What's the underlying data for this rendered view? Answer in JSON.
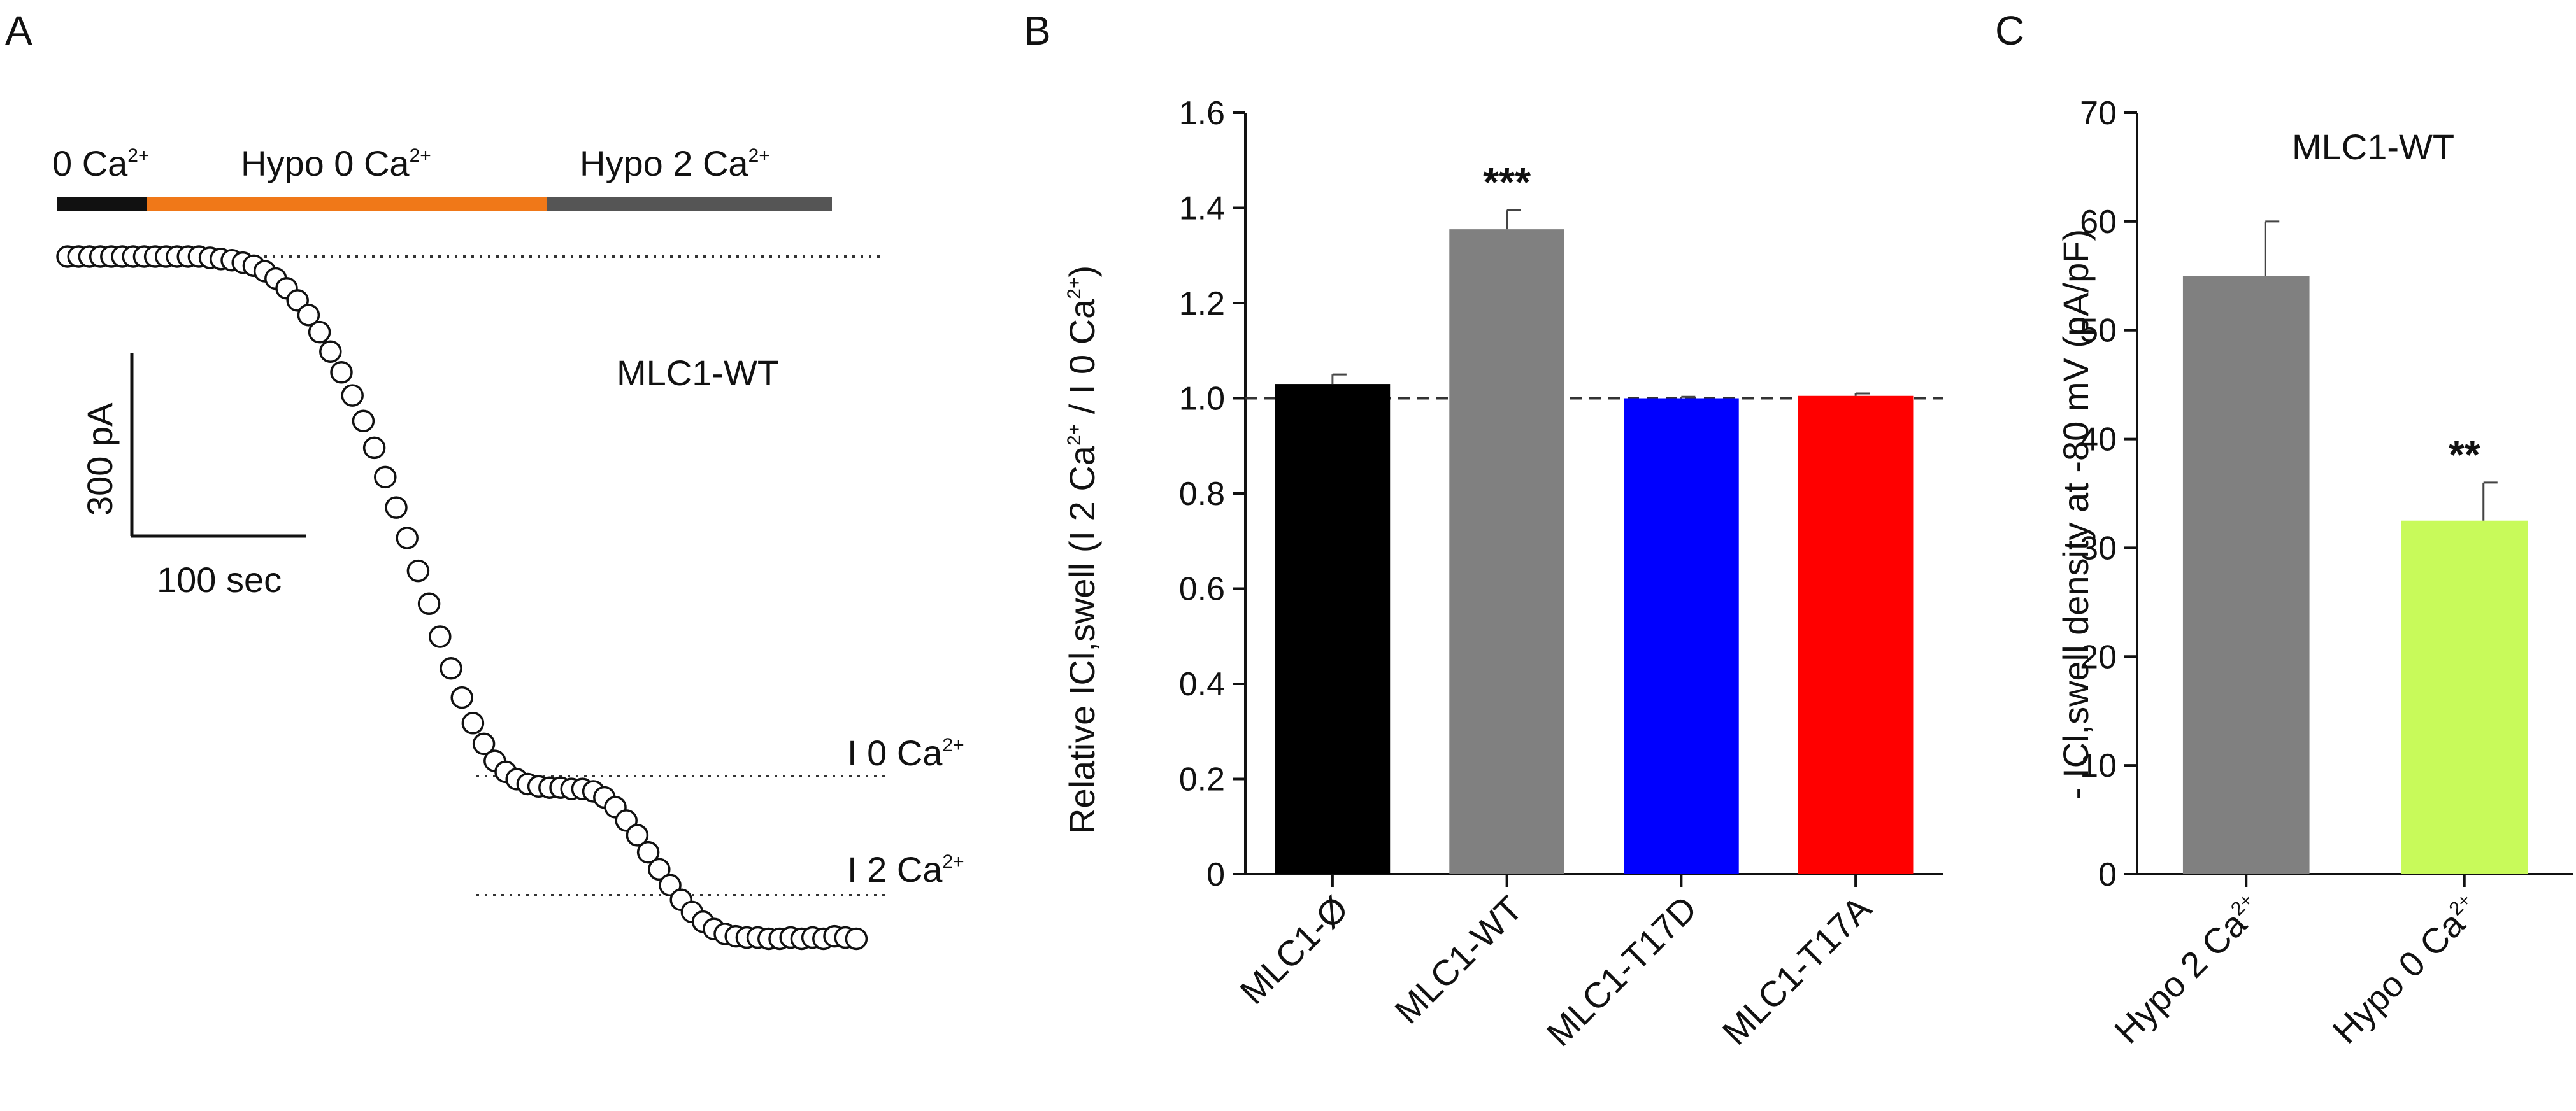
{
  "figure": {
    "panel_labels": {
      "a": "A",
      "b": "B",
      "c": "C"
    }
  },
  "panel_a": {
    "bars": [
      {
        "label": "0 Ca",
        "sup": "2+",
        "color": "#111111"
      },
      {
        "label": "Hypo 0 Ca",
        "sup": "2+",
        "color": "#f07818"
      },
      {
        "label": "Hypo 2 Ca",
        "sup": "2+",
        "color": "#555555"
      }
    ],
    "scale_current": "300 pA",
    "scale_time": "100 sec",
    "condition": "MLC1-WT",
    "level_labels": [
      {
        "label": "I 0 Ca",
        "sup": "2+"
      },
      {
        "label": "I 2 Ca",
        "sup": "2+"
      }
    ]
  },
  "chart_data": [
    {
      "type": "scatter",
      "title": "MLC1-WT",
      "xlabel": "",
      "ylabel": "",
      "scale_bars": {
        "current": "300 pA",
        "time": "100 sec"
      },
      "series": [
        {
          "name": "current trace",
          "sampling_interval_s": 5,
          "values_pA": [
            0,
            0,
            0,
            0,
            0,
            0,
            0,
            0,
            0,
            0,
            0,
            0,
            0,
            -2,
            -4,
            -6,
            -10,
            -15,
            -24,
            -36,
            -52,
            -72,
            -96,
            -124,
            -156,
            -190,
            -228,
            -270,
            -314,
            -362,
            -412,
            -462,
            -516,
            -570,
            -624,
            -676,
            -724,
            -766,
            -800,
            -828,
            -846,
            -858,
            -866,
            -870,
            -872,
            -872,
            -874,
            -874,
            -878,
            -888,
            -904,
            -926,
            -950,
            -978,
            -1006,
            -1032,
            -1056,
            -1076,
            -1092,
            -1104,
            -1112,
            -1116,
            -1118,
            -1118,
            -1120,
            -1120,
            -1118,
            -1120,
            -1118,
            -1120,
            -1116,
            -1118,
            -1120
          ]
        }
      ],
      "annotations": [
        "I 0 Ca2+",
        "I 2 Ca2+"
      ]
    },
    {
      "type": "bar",
      "title": "",
      "categories": [
        "MLC1-Ø",
        "MLC1-WT",
        "MLC1-T17D",
        "MLC1-T17A"
      ],
      "values": [
        1.03,
        1.355,
        1.0,
        1.005
      ],
      "errors": [
        0.02,
        0.04,
        0.003,
        0.005
      ],
      "colors": [
        "#000000",
        "#808080",
        "#0000ff",
        "#ff0000"
      ],
      "significance": [
        "",
        "***",
        "",
        ""
      ],
      "ylabel": "Relative ICl,swell (I 2 Ca2+ / I 0 Ca2+)",
      "ylabel_parts": {
        "pre": "Relative ICl,swell (I 2 Ca",
        "sup1": "2+",
        "mid": " / I 0 Ca",
        "sup2": "2+",
        "post": ")"
      },
      "xlabel": "",
      "ylim": [
        0,
        1.6
      ],
      "yticks": [
        "0",
        "0.2",
        "0.4",
        "0.6",
        "0.8",
        "1.0",
        "1.2",
        "1.4",
        "1.6"
      ],
      "reference_line": 1.0
    },
    {
      "type": "bar",
      "title": "MLC1-WT",
      "categories": [
        "Hypo 2 Ca2+",
        "Hypo 0 Ca2+"
      ],
      "category_parts": [
        {
          "text": "Hypo 2 Ca",
          "sup": "2+"
        },
        {
          "text": "Hypo 0 Ca",
          "sup": "2+"
        }
      ],
      "values": [
        55,
        32.5
      ],
      "errors": [
        5,
        3.5
      ],
      "colors": [
        "#808080",
        "#c8fa5a"
      ],
      "significance": [
        "",
        "**"
      ],
      "ylabel": "- ICl,swell density at -80 mV (pA/pF)",
      "xlabel": "",
      "ylim": [
        0,
        70
      ],
      "yticks": [
        "0",
        "10",
        "20",
        "30",
        "40",
        "50",
        "60",
        "70"
      ]
    }
  ]
}
